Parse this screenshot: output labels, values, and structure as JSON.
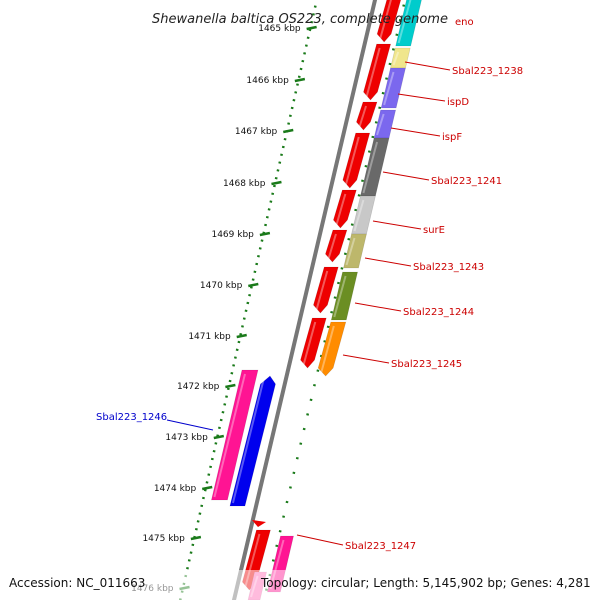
{
  "title": "Shewanella baltica OS223, complete genome",
  "footer": {
    "accession": "Accession: NC_011663",
    "topology": "Topology: circular; Length: 5,145,902 bp; Genes: 4,281"
  },
  "kbp_labels": [
    "1465 kbp",
    "1466 kbp",
    "1467 kbp",
    "1468 kbp",
    "1469 kbp",
    "1470 kbp",
    "1471 kbp",
    "1472 kbp",
    "1473 kbp",
    "1474 kbp",
    "1475 kbp",
    "1476 kbp"
  ],
  "gene_labels": [
    {
      "name": "eno",
      "color": "#cc0000"
    },
    {
      "name": "Sbal223_1238",
      "color": "#cc0000"
    },
    {
      "name": "ispD",
      "color": "#cc0000"
    },
    {
      "name": "ispF",
      "color": "#cc0000"
    },
    {
      "name": "Sbal223_1241",
      "color": "#cc0000"
    },
    {
      "name": "surE",
      "color": "#cc0000"
    },
    {
      "name": "Sbal223_1243",
      "color": "#cc0000"
    },
    {
      "name": "Sbal223_1244",
      "color": "#cc0000"
    },
    {
      "name": "Sbal223_1245",
      "color": "#cc0000"
    },
    {
      "name": "Sbal223_1246",
      "color": "#0000cc"
    },
    {
      "name": "Sbal223_1247",
      "color": "#cc0000"
    }
  ],
  "colors": {
    "backbone": "#777777",
    "tick": "#1a7a1a",
    "forward_strand": "#ee0000",
    "reverse_strand": "#0000ee",
    "cog": [
      "#00cccc",
      "#f0e68c",
      "#7b68ee",
      "#7b68ee",
      "#696969",
      "#c8c8c8",
      "#bdb76b",
      "#6b8e23",
      "#ff8c00"
    ]
  }
}
